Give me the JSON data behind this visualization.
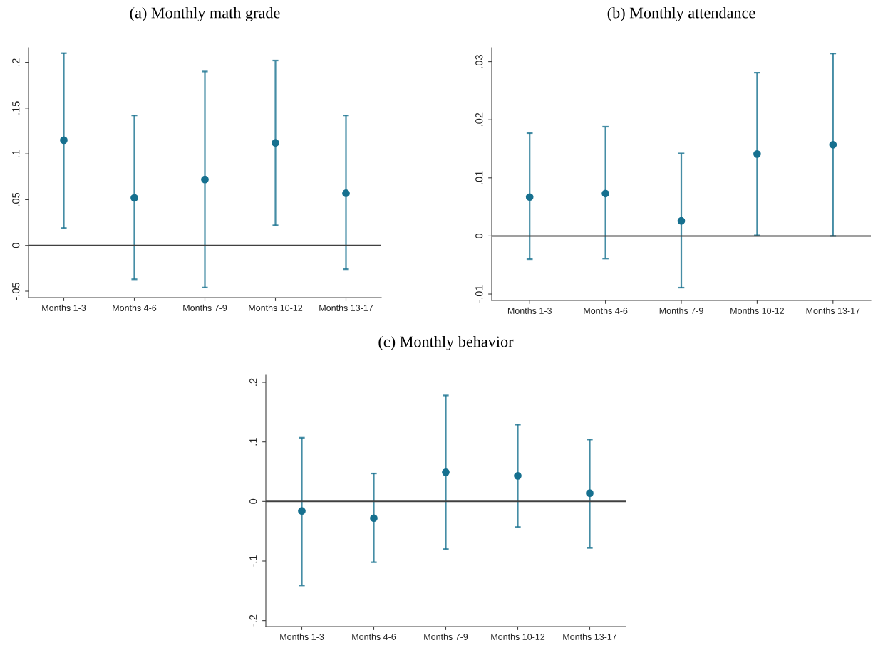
{
  "chart_data": [
    {
      "type": "scatter",
      "title": "(a) Monthly math grade",
      "categories": [
        "Months 1-3",
        "Months 4-6",
        "Months 7-9",
        "Months 10-12",
        "Months 13-17"
      ],
      "series": [
        {
          "color": "#16708f",
          "values": [
            0.115,
            0.052,
            0.072,
            0.112,
            0.057
          ],
          "errors": [
            [
              0.019,
              0.21
            ],
            [
              -0.037,
              0.142
            ],
            [
              -0.046,
              0.19
            ],
            [
              0.022,
              0.202
            ],
            [
              -0.026,
              0.142
            ]
          ]
        }
      ],
      "marker": "circle",
      "ylim": [
        -0.057,
        0.216
      ],
      "yticks": [
        {
          "value": -0.05,
          "label": "-.05"
        },
        0,
        {
          "value": 0.05,
          "label": ".05"
        },
        {
          "value": 0.1,
          "label": ".1"
        },
        {
          "value": 0.15,
          "label": ".15"
        },
        {
          "value": 0.2,
          "label": ".2"
        }
      ],
      "ref_lines": [
        {
          "axis": "y",
          "value": 0,
          "color": "#404040"
        }
      ]
    },
    {
      "type": "scatter",
      "title": "(b) Monthly attendance",
      "categories": [
        "Months 1-3",
        "Months 4-6",
        "Months 7-9",
        "Months 10-12",
        "Months 13-17"
      ],
      "series": [
        {
          "color": "#16708f",
          "values": [
            0.0067,
            0.0073,
            0.0026,
            0.0141,
            0.0157
          ],
          "errors": [
            [
              -0.004,
              0.0177
            ],
            [
              -0.0039,
              0.0188
            ],
            [
              -0.0089,
              0.0142
            ],
            [
              0.0001,
              0.0281
            ],
            [
              0.0,
              0.0314
            ]
          ]
        }
      ],
      "marker": "circle",
      "ylim": [
        -0.0111,
        0.0324
      ],
      "yticks": [
        {
          "value": -0.01,
          "label": "-.01"
        },
        0,
        {
          "value": 0.01,
          "label": ".01"
        },
        {
          "value": 0.02,
          "label": ".02"
        },
        {
          "value": 0.03,
          "label": ".03"
        }
      ],
      "ref_lines": [
        {
          "axis": "y",
          "value": 0,
          "color": "#404040"
        }
      ]
    },
    {
      "type": "scatter",
      "title": "(c) Monthly behavior",
      "categories": [
        "Months 1-3",
        "Months 4-6",
        "Months 7-9",
        "Months 10-12",
        "Months 13-17"
      ],
      "series": [
        {
          "color": "#16708f",
          "values": [
            -0.016,
            -0.028,
            0.049,
            0.043,
            0.014
          ],
          "errors": [
            [
              -0.141,
              0.107
            ],
            [
              -0.102,
              0.047
            ],
            [
              -0.08,
              0.178
            ],
            [
              -0.043,
              0.129
            ],
            [
              -0.078,
              0.104
            ]
          ]
        }
      ],
      "marker": "circle",
      "ylim": [
        -0.21,
        0.212
      ],
      "yticks": [
        {
          "value": -0.2,
          "label": "-.2"
        },
        {
          "value": -0.1,
          "label": "-.1"
        },
        0,
        {
          "value": 0.1,
          "label": ".1"
        },
        {
          "value": 0.2,
          "label": ".2"
        }
      ],
      "ref_lines": [
        {
          "axis": "y",
          "value": 0,
          "color": "#404040"
        }
      ]
    }
  ]
}
